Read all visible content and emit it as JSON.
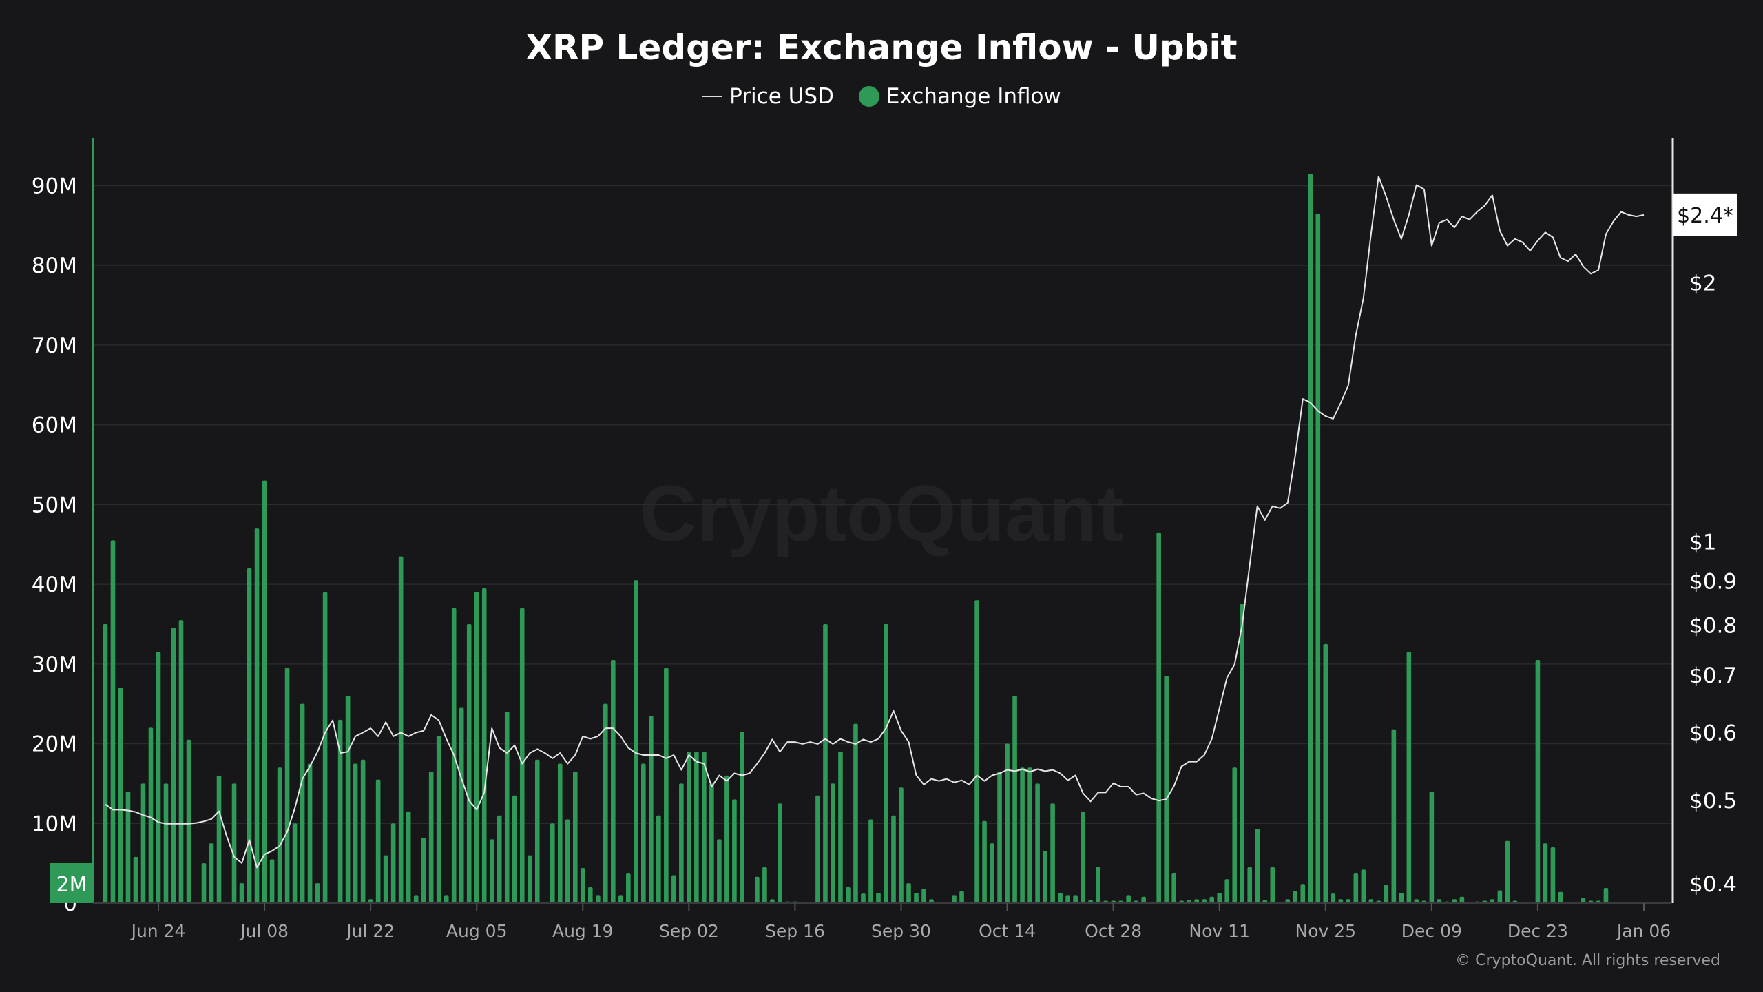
{
  "chart_data": {
    "type": "bar+line",
    "title": "XRP Ledger: Exchange Inflow - Upbit",
    "legend": [
      {
        "name": "Price USD",
        "marker": "line",
        "color": "#e6e6e6"
      },
      {
        "name": "Exchange Inflow",
        "marker": "dot",
        "color": "#2f9a57"
      }
    ],
    "legend_placement": "top-center",
    "watermark": "CryptoQuant",
    "copyright": "© CryptoQuant. All rights reserved",
    "left_axis": {
      "ticks": [
        0,
        10,
        20,
        30,
        40,
        50,
        60,
        70,
        80,
        90
      ],
      "tick_labels": [
        "0",
        "10M",
        "20M",
        "30M",
        "40M",
        "50M",
        "60M",
        "70M",
        "80M",
        "90M"
      ],
      "range": [
        0,
        96
      ],
      "unit": "M"
    },
    "right_axis": {
      "scale": "log",
      "ticks": [
        0.4,
        0.5,
        0.6,
        0.7,
        0.8,
        0.9,
        1,
        2
      ],
      "tick_labels": [
        "$0.4",
        "$0.5",
        "$0.6",
        "$0.7",
        "$0.8",
        "$0.9",
        "$1",
        "$2"
      ],
      "range": [
        0.38,
        2.95
      ]
    },
    "current_price_label": "$2.4*",
    "current_price": 2.4,
    "highlight_label": "2M",
    "x_ticks": [
      "2024-06-24",
      "2024-07-08",
      "2024-07-22",
      "2024-08-05",
      "2024-08-19",
      "2024-09-02",
      "2024-09-16",
      "2024-09-30",
      "2024-10-14",
      "2024-10-28",
      "2024-11-11",
      "2024-11-25",
      "2024-12-09",
      "2024-12-23",
      "2025-01-06"
    ],
    "x_tick_labels": [
      "Jun 24",
      "Jul 08",
      "Jul 22",
      "Aug 05",
      "Aug 19",
      "Sep 02",
      "Sep 16",
      "Sep 30",
      "Oct 14",
      "Oct 28",
      "Nov 11",
      "Nov 25",
      "Dec 09",
      "Dec 23",
      "Jan 06"
    ],
    "grid": "horizontal",
    "colors": {
      "background": "#17171a",
      "bar": "#2f9a57",
      "price_line": "#e6e6e6",
      "grid": "#2a2a2e"
    },
    "dates": [
      "2024-06-17",
      "2024-06-18",
      "2024-06-19",
      "2024-06-20",
      "2024-06-21",
      "2024-06-22",
      "2024-06-23",
      "2024-06-24",
      "2024-06-25",
      "2024-06-26",
      "2024-06-27",
      "2024-06-28",
      "2024-06-29",
      "2024-06-30",
      "2024-07-01",
      "2024-07-02",
      "2024-07-03",
      "2024-07-04",
      "2024-07-05",
      "2024-07-06",
      "2024-07-07",
      "2024-07-08",
      "2024-07-09",
      "2024-07-10",
      "2024-07-11",
      "2024-07-12",
      "2024-07-13",
      "2024-07-14",
      "2024-07-15",
      "2024-07-16",
      "2024-07-17",
      "2024-07-18",
      "2024-07-19",
      "2024-07-20",
      "2024-07-21",
      "2024-07-22",
      "2024-07-23",
      "2024-07-24",
      "2024-07-25",
      "2024-07-26",
      "2024-07-27",
      "2024-07-28",
      "2024-07-29",
      "2024-07-30",
      "2024-07-31",
      "2024-08-01",
      "2024-08-02",
      "2024-08-03",
      "2024-08-04",
      "2024-08-05",
      "2024-08-06",
      "2024-08-07",
      "2024-08-08",
      "2024-08-09",
      "2024-08-10",
      "2024-08-11",
      "2024-08-12",
      "2024-08-13",
      "2024-08-14",
      "2024-08-15",
      "2024-08-16",
      "2024-08-17",
      "2024-08-18",
      "2024-08-19",
      "2024-08-20",
      "2024-08-21",
      "2024-08-22",
      "2024-08-23",
      "2024-08-24",
      "2024-08-25",
      "2024-08-26",
      "2024-08-27",
      "2024-08-28",
      "2024-08-29",
      "2024-08-30",
      "2024-08-31",
      "2024-09-01",
      "2024-09-02",
      "2024-09-03",
      "2024-09-04",
      "2024-09-05",
      "2024-09-06",
      "2024-09-07",
      "2024-09-08",
      "2024-09-09",
      "2024-09-10",
      "2024-09-11",
      "2024-09-12",
      "2024-09-13",
      "2024-09-14",
      "2024-09-15",
      "2024-09-16",
      "2024-09-17",
      "2024-09-18",
      "2024-09-19",
      "2024-09-20",
      "2024-09-21",
      "2024-09-22",
      "2024-09-23",
      "2024-09-24",
      "2024-09-25",
      "2024-09-26",
      "2024-09-27",
      "2024-09-28",
      "2024-09-29",
      "2024-09-30",
      "2024-10-01",
      "2024-10-02",
      "2024-10-03",
      "2024-10-04",
      "2024-10-05",
      "2024-10-06",
      "2024-10-07",
      "2024-10-08",
      "2024-10-09",
      "2024-10-10",
      "2024-10-11",
      "2024-10-12",
      "2024-10-13",
      "2024-10-14",
      "2024-10-15",
      "2024-10-16",
      "2024-10-17",
      "2024-10-18",
      "2024-10-19",
      "2024-10-20",
      "2024-10-21",
      "2024-10-22",
      "2024-10-23",
      "2024-10-24",
      "2024-10-25",
      "2024-10-26",
      "2024-10-27",
      "2024-10-28",
      "2024-10-29",
      "2024-10-30",
      "2024-10-31",
      "2024-11-01",
      "2024-11-02",
      "2024-11-03",
      "2024-11-04",
      "2024-11-05",
      "2024-11-06",
      "2024-11-07",
      "2024-11-08",
      "2024-11-09",
      "2024-11-10",
      "2024-11-11",
      "2024-11-12",
      "2024-11-13",
      "2024-11-14",
      "2024-11-15",
      "2024-11-16",
      "2024-11-17",
      "2024-11-18",
      "2024-11-19",
      "2024-11-20",
      "2024-11-21",
      "2024-11-22",
      "2024-11-23",
      "2024-11-24",
      "2024-11-25",
      "2024-11-26",
      "2024-11-27",
      "2024-11-28",
      "2024-11-29",
      "2024-11-30",
      "2024-12-01",
      "2024-12-02",
      "2024-12-03",
      "2024-12-04",
      "2024-12-05",
      "2024-12-06",
      "2024-12-07",
      "2024-12-08",
      "2024-12-09",
      "2024-12-10",
      "2024-12-11",
      "2024-12-12",
      "2024-12-13",
      "2024-12-14",
      "2024-12-15",
      "2024-12-16",
      "2024-12-17",
      "2024-12-18",
      "2024-12-19",
      "2024-12-20",
      "2024-12-21",
      "2024-12-22",
      "2024-12-23",
      "2024-12-24",
      "2024-12-25",
      "2024-12-26",
      "2024-12-27",
      "2024-12-28",
      "2024-12-29",
      "2024-12-30",
      "2024-12-31",
      "2025-01-01",
      "2025-01-02",
      "2025-01-03",
      "2025-01-04",
      "2025-01-05",
      "2025-01-06"
    ],
    "series": [
      {
        "name": "Exchange Inflow",
        "axis": "left",
        "values": [
          35,
          45.5,
          27,
          14,
          5.8,
          15,
          22,
          31.5,
          15,
          34.5,
          35.5,
          20.5,
          0,
          5,
          7.5,
          16,
          0,
          15,
          2.5,
          42,
          47,
          53,
          5.5,
          17,
          29.5,
          10,
          25,
          17.5,
          2.5,
          39,
          0,
          23,
          26,
          17.5,
          18,
          0.5,
          15.5,
          6,
          10,
          43.5,
          11.5,
          1,
          8.2,
          16.5,
          21,
          1,
          37,
          24.5,
          35,
          39,
          39.5,
          8,
          11,
          24,
          13.5,
          37,
          6,
          18,
          0,
          10,
          17.5,
          10.5,
          16.5,
          4.4,
          2,
          1,
          25,
          30.5,
          1,
          3.8,
          40.5,
          17.5,
          23.5,
          11,
          29.5,
          3.5,
          15,
          19,
          19,
          19,
          15,
          8,
          16,
          13,
          21.5,
          0,
          3.3,
          4.5,
          0.5,
          12.5,
          0.2,
          0.2,
          0,
          0,
          13.5,
          35,
          15,
          19,
          2,
          22.5,
          1.2,
          10.5,
          1.3,
          35,
          11,
          14.5,
          2.5,
          1.3,
          1.8,
          0.5,
          0,
          0,
          1,
          1.5,
          0,
          38,
          10.3,
          7.5,
          16.5,
          20,
          26,
          17,
          17,
          15,
          6.5,
          12.5,
          1.3,
          1,
          1,
          11.5,
          0.4,
          4.5,
          0.3,
          0.3,
          0.3,
          1,
          0.3,
          0.8,
          0,
          46.5,
          28.5,
          3.8,
          0.3,
          0.4,
          0.5,
          0.5,
          0.8,
          1.3,
          3,
          17,
          37.5,
          4.5,
          9.3,
          0.4,
          4.5,
          0,
          0.5,
          1.5,
          2.4,
          91.5,
          86.5,
          32.5,
          1.2,
          0.5,
          0.5,
          3.8,
          4.2,
          0.5,
          0.3,
          2.3,
          21.8,
          1.3,
          31.5,
          0.5,
          0.3,
          14,
          0.5,
          0.2,
          0.5,
          0.8,
          0,
          0.2,
          0.3,
          0.5,
          1.6,
          7.8,
          0.3,
          0,
          0,
          30.5,
          7.5,
          7,
          1.4,
          0,
          0,
          0.6,
          0.3,
          0.3,
          1.9,
          0,
          0,
          0,
          0,
          0
        ]
      },
      {
        "name": "Price USD",
        "axis": "right",
        "values": [
          0.495,
          0.488,
          0.488,
          0.487,
          0.485,
          0.481,
          0.478,
          0.472,
          0.47,
          0.47,
          0.47,
          0.47,
          0.471,
          0.473,
          0.476,
          0.486,
          0.455,
          0.43,
          0.423,
          0.45,
          0.418,
          0.433,
          0.437,
          0.443,
          0.46,
          0.49,
          0.53,
          0.548,
          0.57,
          0.6,
          0.62,
          0.568,
          0.57,
          0.594,
          0.6,
          0.607,
          0.594,
          0.617,
          0.594,
          0.6,
          0.594,
          0.6,
          0.603,
          0.629,
          0.62,
          0.59,
          0.565,
          0.53,
          0.5,
          0.488,
          0.511,
          0.607,
          0.576,
          0.568,
          0.58,
          0.552,
          0.568,
          0.574,
          0.568,
          0.56,
          0.568,
          0.552,
          0.565,
          0.594,
          0.59,
          0.594,
          0.607,
          0.607,
          0.594,
          0.576,
          0.568,
          0.565,
          0.565,
          0.565,
          0.56,
          0.565,
          0.543,
          0.565,
          0.555,
          0.552,
          0.519,
          0.535,
          0.527,
          0.538,
          0.535,
          0.538,
          0.552,
          0.568,
          0.589,
          0.57,
          0.585,
          0.585,
          0.582,
          0.585,
          0.582,
          0.59,
          0.582,
          0.59,
          0.585,
          0.582,
          0.589,
          0.585,
          0.59,
          0.607,
          0.636,
          0.603,
          0.585,
          0.535,
          0.522,
          0.53,
          0.527,
          0.53,
          0.525,
          0.528,
          0.522,
          0.535,
          0.527,
          0.535,
          0.538,
          0.543,
          0.541,
          0.544,
          0.54,
          0.544,
          0.541,
          0.543,
          0.538,
          0.528,
          0.535,
          0.51,
          0.499,
          0.511,
          0.511,
          0.524,
          0.519,
          0.519,
          0.508,
          0.51,
          0.503,
          0.5,
          0.502,
          0.52,
          0.548,
          0.555,
          0.555,
          0.565,
          0.59,
          0.64,
          0.695,
          0.72,
          0.8,
          0.94,
          1.1,
          1.06,
          1.1,
          1.094,
          1.11,
          1.26,
          1.466,
          1.452,
          1.42,
          1.4,
          1.39,
          1.45,
          1.52,
          1.74,
          1.92,
          2.28,
          2.66,
          2.52,
          2.37,
          2.25,
          2.4,
          2.6,
          2.57,
          2.21,
          2.35,
          2.37,
          2.32,
          2.39,
          2.37,
          2.42,
          2.46,
          2.53,
          2.3,
          2.21,
          2.25,
          2.23,
          2.18,
          2.24,
          2.29,
          2.26,
          2.14,
          2.12,
          2.16,
          2.09,
          2.05,
          2.07,
          2.28,
          2.36,
          2.42,
          2.4,
          2.39,
          2.4
        ]
      }
    ]
  }
}
